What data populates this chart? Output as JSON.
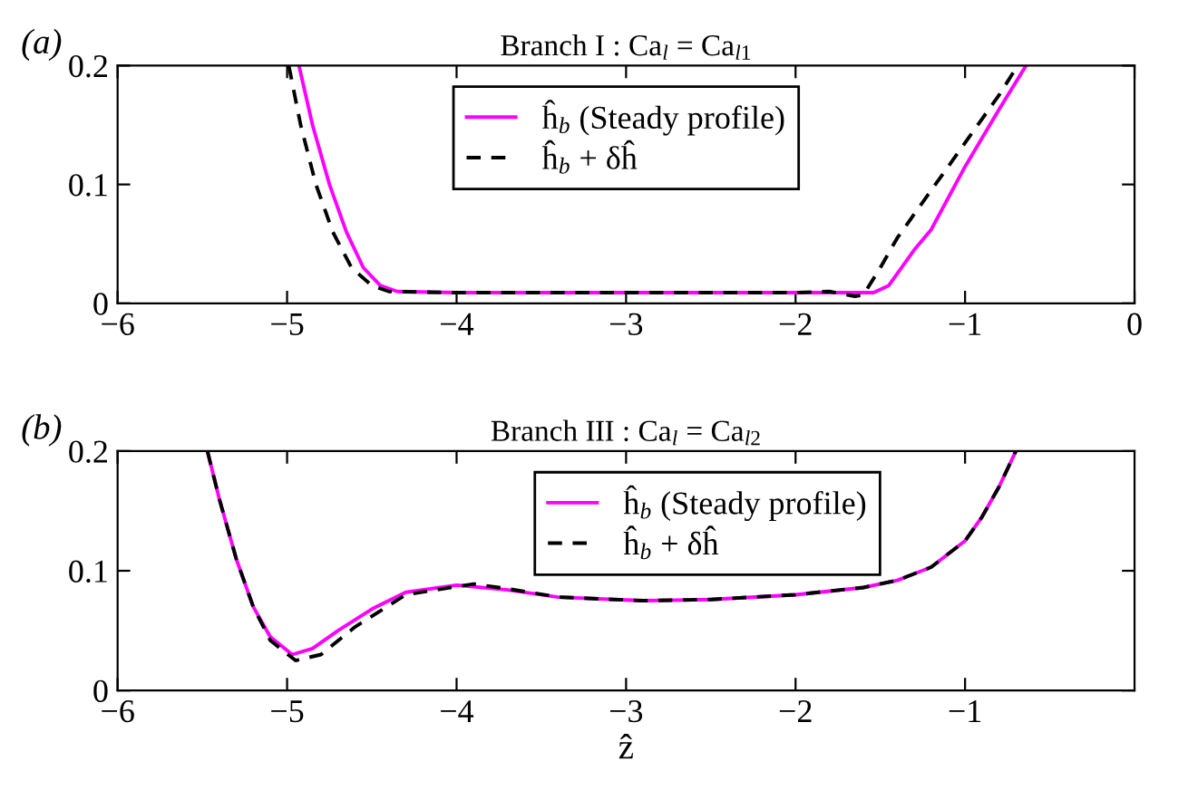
{
  "chart_data": [
    {
      "type": "line",
      "title": "Branch I : Ca$_{l}$ = Ca$_{l1}$",
      "annotations": [
        "(a)"
      ],
      "xlim": [
        -6,
        0
      ],
      "ylim": [
        0,
        0.2
      ],
      "xticks": [
        -6,
        -5,
        -4,
        -3,
        -2,
        -1,
        0
      ],
      "yticks": [
        0,
        0.1,
        0.2
      ],
      "grid": false,
      "legend": "top",
      "series": [
        {
          "name": "ĥ$_{b}$ (Steady profile)",
          "color": "#ff00ff",
          "line_style": "solid",
          "x": [
            -4.93,
            -4.85,
            -4.75,
            -4.65,
            -4.55,
            -4.45,
            -4.35,
            -4.0,
            -3.0,
            -2.0,
            -1.6,
            -1.54,
            -1.45,
            -1.3,
            -1.2,
            -1.0,
            -0.8,
            -0.64
          ],
          "values": [
            0.2,
            0.15,
            0.1,
            0.06,
            0.03,
            0.015,
            0.01,
            0.009,
            0.009,
            0.009,
            0.009,
            0.009,
            0.015,
            0.045,
            0.062,
            0.115,
            0.163,
            0.2
          ]
        },
        {
          "name": "ĥ$_{b}$ + δĥ",
          "color": "#000000",
          "line_style": "dashed",
          "x": [
            -4.99,
            -4.92,
            -4.83,
            -4.73,
            -4.62,
            -4.5,
            -4.4,
            -4.0,
            -3.0,
            -2.0,
            -1.8,
            -1.65,
            -1.6,
            -1.5,
            -1.4,
            -1.3,
            -1.2,
            -1.0,
            -0.8,
            -0.69
          ],
          "values": [
            0.2,
            0.15,
            0.1,
            0.06,
            0.03,
            0.015,
            0.01,
            0.009,
            0.009,
            0.009,
            0.01,
            0.006,
            0.007,
            0.03,
            0.055,
            0.075,
            0.095,
            0.135,
            0.175,
            0.2
          ]
        }
      ]
    },
    {
      "type": "line",
      "title": "Branch III : Ca$_{l}$ = Ca$_{l2}$",
      "xlabel": "ẑ",
      "annotations": [
        "(b)"
      ],
      "xlim": [
        -6,
        0
      ],
      "ylim": [
        0,
        0.2
      ],
      "xticks": [
        -6,
        -5,
        -4,
        -3,
        -2,
        -1
      ],
      "yticks": [
        0,
        0.1,
        0.2
      ],
      "grid": false,
      "legend": "top",
      "series": [
        {
          "name": "ĥ$_{b}$ (Steady profile)",
          "color": "#ff00ff",
          "line_style": "solid",
          "x": [
            -5.47,
            -5.4,
            -5.3,
            -5.2,
            -5.1,
            -4.97,
            -4.85,
            -4.7,
            -4.5,
            -4.3,
            -4.0,
            -3.7,
            -3.4,
            -2.9,
            -2.5,
            -2.0,
            -1.6,
            -1.4,
            -1.2,
            -1.0,
            -0.9,
            -0.8,
            -0.7
          ],
          "values": [
            0.2,
            0.16,
            0.11,
            0.07,
            0.045,
            0.03,
            0.035,
            0.05,
            0.068,
            0.082,
            0.088,
            0.084,
            0.078,
            0.075,
            0.076,
            0.08,
            0.086,
            0.092,
            0.103,
            0.125,
            0.145,
            0.17,
            0.2
          ]
        },
        {
          "name": "ĥ$_{b}$ + δĥ",
          "color": "#000000",
          "line_style": "dashed",
          "x": [
            -5.47,
            -5.4,
            -5.3,
            -5.2,
            -5.1,
            -4.95,
            -4.8,
            -4.6,
            -4.3,
            -3.9,
            -3.7,
            -3.4,
            -2.9,
            -2.5,
            -2.0,
            -1.6,
            -1.4,
            -1.2,
            -1.0,
            -0.9,
            -0.8,
            -0.7
          ],
          "values": [
            0.2,
            0.16,
            0.11,
            0.07,
            0.042,
            0.025,
            0.03,
            0.053,
            0.08,
            0.089,
            0.085,
            0.078,
            0.075,
            0.076,
            0.08,
            0.086,
            0.092,
            0.103,
            0.125,
            0.145,
            0.17,
            0.2
          ]
        }
      ]
    }
  ]
}
